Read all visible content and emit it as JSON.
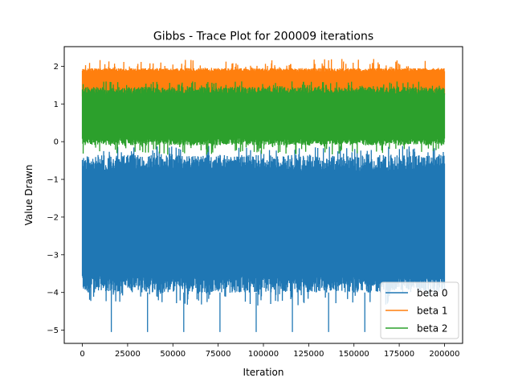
{
  "chart_data": {
    "type": "line",
    "title": "Gibbs - Trace Plot for 200009 iterations",
    "xlabel": "Iteration",
    "ylabel": "Value Drawn",
    "xlim": [
      -10000,
      210000
    ],
    "ylim": [
      -5.35,
      2.52
    ],
    "xticks": [
      0,
      25000,
      50000,
      75000,
      100000,
      125000,
      150000,
      175000,
      200000
    ],
    "xtick_labels": [
      "0",
      "25000",
      "50000",
      "75000",
      "100000",
      "125000",
      "150000",
      "175000",
      "200000"
    ],
    "yticks": [
      -5,
      -4,
      -3,
      -2,
      -1,
      0,
      1,
      2
    ],
    "ytick_labels": [
      "−5",
      "−4",
      "−3",
      "−2",
      "−1",
      "0",
      "1",
      "2"
    ],
    "iterations": 200009,
    "grid": false,
    "legend_position": "lower-right",
    "series": [
      {
        "name": "beta 0",
        "color": "#1f77b4",
        "band": [
          -4.0,
          -0.35
        ],
        "extremes": [
          -4.35,
          -0.1
        ],
        "spikes": [
          {
            "x": 16000,
            "y": -5.05
          },
          {
            "x": 36000,
            "y": -5.05
          },
          {
            "x": 56000,
            "y": -5.05
          },
          {
            "x": 76000,
            "y": -5.05
          },
          {
            "x": 96000,
            "y": -5.05
          },
          {
            "x": 116000,
            "y": -5.05
          },
          {
            "x": 136000,
            "y": -5.05
          },
          {
            "x": 156000,
            "y": -5.05
          }
        ]
      },
      {
        "name": "beta 1",
        "color": "#ff7f0e",
        "band": [
          1.2,
          1.95
        ],
        "extremes": [
          0.95,
          2.2
        ],
        "spikes": []
      },
      {
        "name": "beta 2",
        "color": "#2ca02c",
        "band": [
          -0.1,
          1.45
        ],
        "extremes": [
          -0.35,
          1.6
        ],
        "spikes": []
      }
    ]
  }
}
